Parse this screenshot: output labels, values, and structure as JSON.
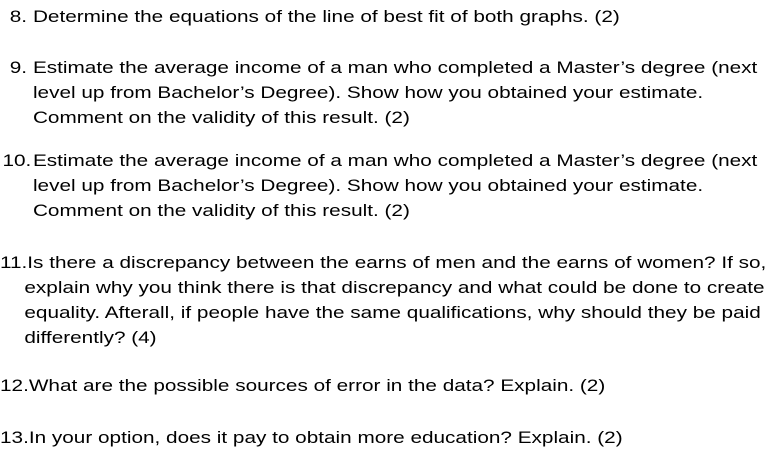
{
  "page": {
    "background": "#ffffff",
    "text_color": "#000000"
  },
  "questions": [
    {
      "number": "8.",
      "points": "2",
      "lines": [
        "Determine the equations of the line of best fit of both graphs. (2)"
      ]
    },
    {
      "number": "9.",
      "points": "2",
      "lines": [
        "Estimate the average income of a man who completed a Master’s degree (next",
        "level up from Bachelor’s Degree). Show how you obtained your estimate.",
        "Comment on the validity of this result. (2)"
      ]
    },
    {
      "number": "10.",
      "points": "2",
      "lines": [
        "Estimate the average income of a man who completed a Master’s degree (next",
        "level up from Bachelor’s Degree). Show how you obtained your estimate.",
        "Comment on the validity of this result. (2)"
      ]
    },
    {
      "number": "11.",
      "points": "4",
      "lines": [
        "Is there a discrepancy between the earns of men and the earns of women? If so,",
        "explain why you think there is that discrepancy and what could be done to create",
        "equality. Afterall, if people have the same qualifications, why should they be paid",
        "differently? (4)"
      ]
    },
    {
      "number": "12.",
      "points": "2",
      "lines": [
        "What are the possible sources of error in the data? Explain. (2)"
      ]
    },
    {
      "number": "13.",
      "points": "2",
      "lines": [
        "In your option, does it pay to obtain more education? Explain. (2)"
      ]
    }
  ]
}
